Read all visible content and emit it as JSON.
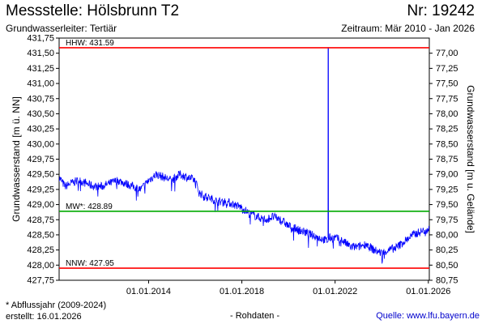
{
  "header": {
    "title": "Messstelle: Hölsbrunn T2",
    "station_number": "Nr: 19242",
    "aquifer": "Grundwasserleiter: Tertiär",
    "period": "Zeitraum: Mär 2010 - Jan 2026"
  },
  "footer": {
    "footnote": "* Abflussjahr (2009-2024)",
    "created": "erstellt:  16.01.2026",
    "data_kind": "- Rohdaten -",
    "source": "Quelle: www.lfu.bayern.de"
  },
  "colors": {
    "series": "#0000ff",
    "extreme_lines": "#ff0000",
    "mean_line": "#00aa00",
    "axis": "#000000"
  },
  "chart_data": {
    "type": "line",
    "ylabel": "Grundwasserstand [m ü. NN]",
    "ylabel_right": "Grundwasserstand [m u. Gelände]",
    "xlim": [
      "2010-03-01",
      "2026-01-16"
    ],
    "ylim": [
      427.75,
      431.75
    ],
    "ylim_right_inverted": [
      76.75,
      80.75
    ],
    "yticks": [
      "427,75",
      "428,00",
      "428,25",
      "428,50",
      "428,75",
      "429,00",
      "429,25",
      "429,50",
      "429,75",
      "430,00",
      "430,25",
      "430,50",
      "430,75",
      "431,00",
      "431,25",
      "431,50",
      "431,75"
    ],
    "yticks_right": [
      "77,00",
      "77,25",
      "77,50",
      "77,75",
      "78,00",
      "78,25",
      "78,50",
      "78,75",
      "79,00",
      "79,25",
      "79,50",
      "79,75",
      "80,00",
      "80,25",
      "80,50",
      "80,75"
    ],
    "xticks": [
      {
        "date": "2014-01-01",
        "label": "01.01.2014"
      },
      {
        "date": "2018-01-01",
        "label": "01.01.2018"
      },
      {
        "date": "2022-01-01",
        "label": "01.01.2022"
      },
      {
        "date": "2026-01-01",
        "label": "01.01.2026"
      }
    ],
    "reference_lines": [
      {
        "label": "HHW: 431.59",
        "value": 431.59,
        "color": "#ff0000"
      },
      {
        "label": "MW*: 428.89",
        "value": 428.89,
        "color": "#00aa00"
      },
      {
        "label": "NNW: 427.95",
        "value": 427.95,
        "color": "#ff0000"
      }
    ],
    "series": [
      {
        "color": "#0000ff",
        "x": [
          "2010-03-01",
          "2010-06-01",
          "2010-09-01",
          "2011-01-01",
          "2011-05-01",
          "2011-09-01",
          "2012-01-01",
          "2012-05-01",
          "2012-09-01",
          "2013-01-01",
          "2013-05-01",
          "2013-09-01",
          "2014-01-01",
          "2014-05-01",
          "2014-09-01",
          "2015-01-01",
          "2015-05-01",
          "2015-09-01",
          "2016-01-01",
          "2016-03-01",
          "2016-05-01",
          "2016-09-01",
          "2017-01-01",
          "2017-05-01",
          "2017-09-01",
          "2018-01-01",
          "2018-05-01",
          "2018-09-01",
          "2019-01-01",
          "2019-05-01",
          "2019-09-01",
          "2020-01-01",
          "2020-05-01",
          "2020-09-01",
          "2021-01-01",
          "2021-05-01",
          "2021-09-01",
          "2021-10-01",
          "2022-01-01",
          "2022-05-01",
          "2022-09-01",
          "2023-01-01",
          "2023-05-01",
          "2023-09-01",
          "2024-01-01",
          "2024-05-01",
          "2024-09-01",
          "2025-01-01",
          "2025-05-01",
          "2025-09-01",
          "2026-01-16"
        ],
        "y": [
          429.45,
          429.3,
          429.35,
          429.4,
          429.35,
          429.3,
          429.3,
          429.35,
          429.4,
          429.35,
          429.3,
          429.25,
          429.4,
          429.5,
          429.45,
          429.4,
          429.5,
          429.45,
          429.4,
          429.2,
          429.15,
          429.1,
          429.05,
          429.05,
          429.0,
          428.95,
          428.85,
          428.8,
          428.75,
          428.8,
          428.75,
          428.65,
          428.6,
          428.55,
          428.5,
          428.45,
          428.4,
          428.45,
          428.45,
          428.4,
          428.3,
          428.3,
          428.35,
          428.25,
          428.2,
          428.25,
          428.3,
          428.4,
          428.5,
          428.55,
          428.6
        ]
      },
      {
        "color": "#0000ff",
        "x": [
          "2021-09-14",
          "2021-09-15",
          "2021-09-16",
          "2021-09-17"
        ],
        "y": [
          428.45,
          431.59,
          431.59,
          428.45
        ]
      }
    ]
  }
}
